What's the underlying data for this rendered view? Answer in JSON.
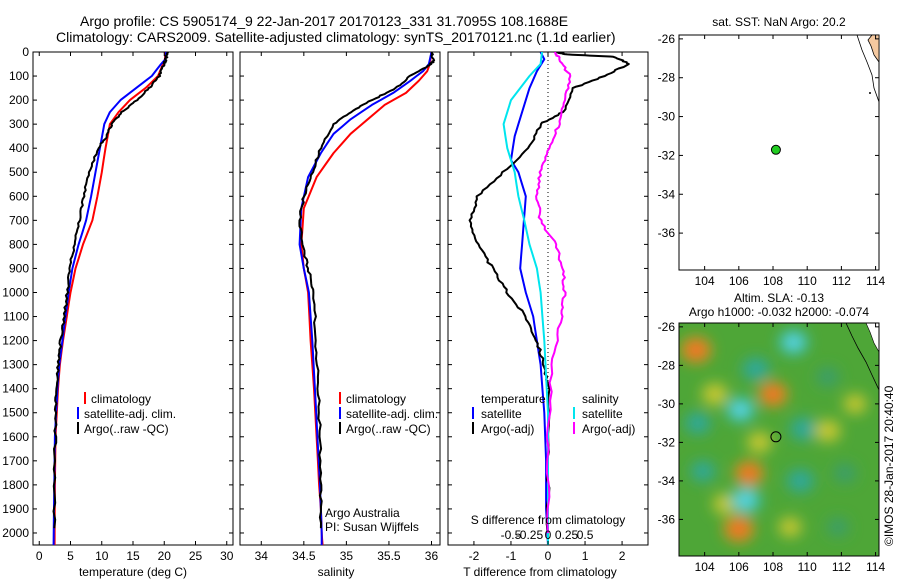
{
  "title": {
    "line1": "Argo profile: CS 5905174_9 22-Jan-2017 20170123_331 31.7095S 108.1688E",
    "line2": "Climatology: CARS2009. Satellite-adjusted climatology: synTS_20170121.nc (1.1d earlier)"
  },
  "credit": "©IMOS 28-Jan-2017 20:40:40",
  "colors": {
    "clim": "#ff0000",
    "sat": "#0000ff",
    "argo": "#000000",
    "sal_sat": "#00e5ee",
    "sal_argo": "#ff00ff",
    "float_marker": "#22cc22"
  },
  "chart_data": [
    {
      "id": "temperature",
      "type": "line",
      "xlabel": "temperature (deg C)",
      "ylim": [
        2050,
        0
      ],
      "xlim": [
        -1,
        31
      ],
      "xticks": [
        0,
        5,
        10,
        15,
        20,
        25,
        30
      ],
      "yticks": [
        0,
        100,
        200,
        300,
        400,
        500,
        600,
        700,
        800,
        900,
        1000,
        1100,
        1200,
        1300,
        1400,
        1500,
        1600,
        1700,
        1800,
        1900,
        2000
      ],
      "legend": [
        "climatology",
        "satellite-adj. clim.",
        "Argo(..raw -QC)"
      ],
      "series": [
        {
          "name": "climatology",
          "color": "clim",
          "x": [
            20.2,
            20.1,
            19.8,
            19,
            17,
            14.5,
            12.7,
            11.3,
            10.6,
            10,
            9.3,
            8.5,
            7,
            5.8,
            5,
            4.4,
            3.8,
            3.3,
            3,
            2.8,
            2.6,
            2.5,
            2.45
          ],
          "y": [
            0,
            30,
            50,
            100,
            150,
            200,
            250,
            300,
            400,
            500,
            600,
            700,
            800,
            900,
            1000,
            1100,
            1200,
            1300,
            1400,
            1500,
            1600,
            1800,
            2050
          ]
        },
        {
          "name": "satellite-adj. clim.",
          "color": "sat",
          "x": [
            20.3,
            20.2,
            19.5,
            18,
            15.5,
            13,
            11.3,
            10.4,
            9.7,
            9,
            8.3,
            7.5,
            6.3,
            5.3,
            4.7,
            4.2,
            3.7,
            3.2,
            2.9,
            2.7,
            2.5,
            2.4,
            2.3
          ],
          "y": [
            0,
            30,
            50,
            100,
            150,
            200,
            250,
            300,
            400,
            500,
            600,
            700,
            800,
            900,
            1000,
            1100,
            1200,
            1300,
            1400,
            1500,
            1600,
            1800,
            2050
          ]
        },
        {
          "name": "Argo(..raw -QC)",
          "color": "argo",
          "x": [
            20.5,
            20.3,
            20,
            19.2,
            17.6,
            15.6,
            13.2,
            11.6,
            10.8,
            9.4,
            8.1,
            7.1,
            6.4,
            5.6,
            4.9,
            4.5,
            4,
            3.4,
            3,
            2.8,
            2.6,
            2.5,
            2.4
          ],
          "y": [
            0,
            25,
            50,
            100,
            150,
            200,
            250,
            300,
            350,
            400,
            500,
            600,
            700,
            800,
            900,
            1000,
            1100,
            1200,
            1300,
            1400,
            1500,
            1700,
            1980
          ]
        }
      ]
    },
    {
      "id": "salinity",
      "type": "line",
      "xlabel": "salinity",
      "ylim": [
        2050,
        0
      ],
      "xlim": [
        33.75,
        36.1
      ],
      "xticks": [
        34,
        34.5,
        35,
        35.5,
        36
      ],
      "legend": [
        "climatology",
        "satellite-adj. clim.",
        "Argo(..raw -QC)"
      ],
      "annotation": [
        "Argo Australia",
        "PI: Susan Wijffels"
      ],
      "series": [
        {
          "name": "climatology",
          "color": "clim",
          "x": [
            36,
            35.98,
            35.95,
            35.85,
            35.7,
            35.45,
            35.25,
            35.05,
            34.85,
            34.65,
            34.5,
            34.47,
            34.5,
            34.55,
            34.58,
            34.62,
            34.65,
            34.68,
            34.7,
            34.71,
            34.72
          ],
          "y": [
            0,
            50,
            80,
            120,
            170,
            220,
            280,
            340,
            420,
            520,
            650,
            800,
            900,
            1000,
            1200,
            1400,
            1600,
            1800,
            1900,
            2000,
            2050
          ]
        },
        {
          "name": "satellite-adj. clim.",
          "color": "sat",
          "x": [
            36,
            35.97,
            35.9,
            35.75,
            35.55,
            35.3,
            35.05,
            34.85,
            34.7,
            34.55,
            34.47,
            34.45,
            34.5,
            34.56,
            34.6,
            34.63,
            34.66,
            34.69,
            34.7,
            34.71,
            34.71
          ],
          "y": [
            0,
            50,
            80,
            120,
            170,
            220,
            280,
            340,
            420,
            520,
            650,
            800,
            900,
            1000,
            1200,
            1400,
            1600,
            1800,
            1900,
            2000,
            2050
          ]
        },
        {
          "name": "Argo(..raw -QC)",
          "color": "argo",
          "x": [
            36,
            36.02,
            35.95,
            35.75,
            35.58,
            35.3,
            35.05,
            34.85,
            34.7,
            34.6,
            34.5,
            34.45,
            34.48,
            34.55,
            34.62,
            34.64,
            34.67,
            34.69,
            34.7,
            34.7
          ],
          "y": [
            0,
            40,
            60,
            100,
            150,
            200,
            250,
            300,
            400,
            500,
            600,
            700,
            800,
            900,
            1000,
            1200,
            1400,
            1600,
            1800,
            1980
          ]
        }
      ]
    },
    {
      "id": "difference",
      "type": "line",
      "xlabel": "T difference from climatology",
      "xlabel2": "S difference from climatology",
      "ylim": [
        2050,
        0
      ],
      "xlim": [
        -2.7,
        2.7
      ],
      "xticks": [
        -2,
        -1,
        0,
        1,
        2
      ],
      "xticks_salinity": [
        "-0.5",
        "-0.25",
        "0",
        "0.25",
        "0.5"
      ],
      "legend_left": [
        "temperature",
        "satellite",
        "Argo(-adj)"
      ],
      "legend_right": [
        "salinity",
        "satellite",
        "Argo(-adj)"
      ],
      "series": [
        {
          "name": "satellite",
          "group": "temperature",
          "color": "sat",
          "x": [
            -0.2,
            -0.1,
            -0.3,
            -0.5,
            -0.7,
            -0.9,
            -1,
            -0.8,
            -0.6,
            -0.65,
            -0.7,
            -0.75,
            -0.6,
            -0.4,
            -0.3,
            -0.2,
            -0.1,
            -0.05,
            -0.05,
            0
          ],
          "y": [
            0,
            30,
            80,
            150,
            250,
            350,
            450,
            500,
            600,
            700,
            800,
            900,
            1000,
            1100,
            1200,
            1300,
            1500,
            1700,
            1900,
            2050
          ]
        },
        {
          "name": "Argo(-adj)",
          "group": "temperature",
          "color": "argo",
          "x": [
            0.2,
            0.5,
            1.8,
            2.2,
            1.5,
            0.7,
            0.4,
            -0.2,
            -0.5,
            -1.2,
            -1.9,
            -2.1,
            -1.9,
            -1.5,
            -1.1,
            -0.6,
            -0.3,
            -0.1,
            0,
            0,
            0
          ],
          "y": [
            0,
            10,
            20,
            50,
            100,
            150,
            250,
            300,
            400,
            500,
            600,
            700,
            800,
            900,
            1000,
            1100,
            1200,
            1300,
            1400,
            1700,
            2000
          ]
        },
        {
          "name": "satellite",
          "group": "salinity",
          "color": "sal_sat",
          "x": [
            -0.08,
            -0.1,
            -0.25,
            -0.5,
            -0.6,
            -0.55,
            -0.45,
            -0.4,
            -0.32,
            -0.25,
            -0.15,
            -0.1,
            -0.05,
            0,
            0,
            0
          ],
          "y": [
            0,
            50,
            100,
            200,
            300,
            400,
            500,
            600,
            700,
            800,
            900,
            1000,
            1200,
            1500,
            1800,
            2050
          ]
        },
        {
          "name": "Argo(-adj)",
          "group": "salinity",
          "color": "sal_argo",
          "x": [
            0.1,
            0.15,
            0.3,
            0.22,
            0.15,
            0.02,
            -0.1,
            -0.15,
            -0.1,
            0.1,
            0.2,
            0.22,
            0.18,
            0.05,
            0,
            0
          ],
          "y": [
            0,
            30,
            100,
            200,
            300,
            400,
            500,
            600,
            700,
            800,
            900,
            1000,
            1100,
            1300,
            1600,
            2000
          ]
        }
      ]
    },
    {
      "id": "sst_map",
      "type": "scatter",
      "title": "sat. SST: NaN Argo: 20.2",
      "xlim": [
        102.5,
        114.2
      ],
      "ylim": [
        -37.9,
        -25.8
      ],
      "xticks": [
        104,
        106,
        108,
        110,
        112,
        114
      ],
      "yticks": [
        -26,
        -28,
        -30,
        -32,
        -34,
        -36
      ],
      "point": {
        "x": 108.17,
        "y": -31.71
      }
    },
    {
      "id": "sla_map",
      "type": "heatmap",
      "title1": "Altim. SLA: -0.13",
      "title2": "Argo h1000: -0.032 h2000: -0.074",
      "xlim": [
        102.5,
        114.2
      ],
      "ylim": [
        -37.9,
        -25.8
      ],
      "xticks": [
        104,
        106,
        108,
        110,
        112,
        114
      ],
      "yticks": [
        -26,
        -28,
        -30,
        -32,
        -34,
        -36
      ],
      "point": {
        "x": 108.17,
        "y": -31.71
      },
      "blobs": [
        {
          "x": 103.5,
          "y": -27.2,
          "v": 1
        },
        {
          "x": 107.0,
          "y": -28.2,
          "v": -0.8
        },
        {
          "x": 109.2,
          "y": -26.8,
          "v": -0.9
        },
        {
          "x": 111.2,
          "y": -28.6,
          "v": -0.5
        },
        {
          "x": 104.6,
          "y": -29.5,
          "v": 0.7
        },
        {
          "x": 108.0,
          "y": -29.5,
          "v": 0.9
        },
        {
          "x": 103.6,
          "y": -31.0,
          "v": -0.7
        },
        {
          "x": 106.1,
          "y": -30.3,
          "v": -0.9
        },
        {
          "x": 109.8,
          "y": -31.3,
          "v": -0.8
        },
        {
          "x": 107.2,
          "y": -32.0,
          "v": 0.6
        },
        {
          "x": 111.2,
          "y": -31.4,
          "v": 0.7
        },
        {
          "x": 106.6,
          "y": -33.6,
          "v": 0.9
        },
        {
          "x": 103.9,
          "y": -33.5,
          "v": -0.6
        },
        {
          "x": 109.6,
          "y": -34.0,
          "v": -0.8
        },
        {
          "x": 112.2,
          "y": -33.6,
          "v": -0.5
        },
        {
          "x": 105.2,
          "y": -35.2,
          "v": 0.6
        },
        {
          "x": 106.4,
          "y": -35.0,
          "v": -1.0
        },
        {
          "x": 106.0,
          "y": -36.5,
          "v": 1.0
        },
        {
          "x": 109.0,
          "y": -36.4,
          "v": 0.5
        },
        {
          "x": 111.8,
          "y": -36.4,
          "v": -0.4
        },
        {
          "x": 112.8,
          "y": -30.0,
          "v": 0.5
        }
      ]
    }
  ]
}
